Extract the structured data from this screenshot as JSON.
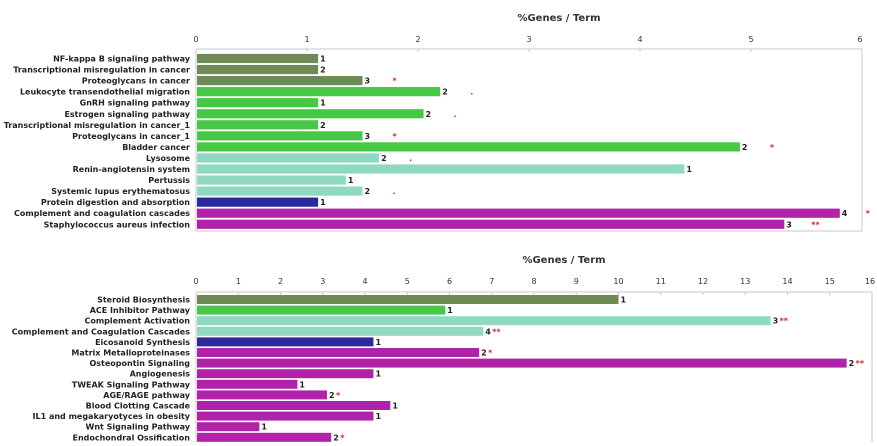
{
  "colors": {
    "dark_green": "#6e8b55",
    "green": "#46c846",
    "aqua": "#8fd9c2",
    "navy": "#2a2a9a",
    "magenta": "#b023a8",
    "star": "#e0201c"
  },
  "chart_data": [
    {
      "type": "bar",
      "orientation": "horizontal",
      "title": "%Genes / Term",
      "xlim": [
        0,
        6
      ],
      "xticks": [
        "0",
        "1",
        "2",
        "3",
        "4",
        "5",
        "6"
      ],
      "grid": false,
      "categories": [
        "NF-kappa B signaling pathway",
        "Transcriptional misregulation in cancer",
        "Proteoglycans in cancer",
        "Leukocyte transendothelial migration",
        "GnRH signaling pathway",
        "Estrogen signaling pathway",
        "Transcriptional misregulation in cancer_1",
        "Proteoglycans in cancer_1",
        "Bladder cancer",
        "Lysosome",
        "Renin-angiotensin system",
        "Pertussis",
        "Systemic lupus erythematosus",
        "Protein digestion and absorption",
        "Complement and coagulation cascades",
        "Staphylococcus aureus infection"
      ],
      "values": [
        1.1,
        1.1,
        1.5,
        2.2,
        1.1,
        2.05,
        1.1,
        1.5,
        4.9,
        1.65,
        4.4,
        1.35,
        1.5,
        1.1,
        5.8,
        5.3
      ],
      "counts": [
        "1",
        "2",
        "3",
        "2",
        "1",
        "2",
        "2",
        "3",
        "2",
        "2",
        "1",
        "1",
        "2",
        "1",
        "4",
        "3"
      ],
      "marks": [
        "",
        "",
        "*",
        ".",
        "",
        ".",
        "",
        "*",
        "*",
        ".",
        "",
        "",
        ".",
        "",
        "*",
        "**"
      ],
      "bar_colors": [
        "dark_green",
        "dark_green",
        "dark_green",
        "green",
        "green",
        "green",
        "green",
        "green",
        "green",
        "aqua",
        "aqua",
        "aqua",
        "aqua",
        "navy",
        "magenta",
        "magenta"
      ]
    },
    {
      "type": "bar",
      "orientation": "horizontal",
      "title": "%Genes / Term",
      "xlim": [
        0,
        16
      ],
      "xticks": [
        "0",
        "1",
        "2",
        "3",
        "4",
        "5",
        "6",
        "7",
        "8",
        "9",
        "10",
        "11",
        "12",
        "13",
        "14",
        "15",
        "16"
      ],
      "grid": false,
      "categories": [
        "Steroid Biosynthesis",
        "ACE Inhibitor Pathway",
        "Complement Activation",
        "Complement and Coagulation Cascades",
        "Eicosanoid Synthesis",
        "Matrix Metalloproteinases",
        "Osteopontin Signaling",
        "Angiogenesis",
        "TWEAK Signaling Pathway",
        "AGE/RAGE pathway",
        "Blood Clotting Cascade",
        "IL1 and megakaryotyces in obesity",
        "Wnt Signaling Pathway",
        "Endochondral Ossification"
      ],
      "values": [
        10.0,
        5.9,
        13.6,
        6.8,
        4.2,
        6.7,
        15.4,
        4.2,
        2.4,
        3.1,
        4.6,
        4.2,
        1.5,
        3.2
      ],
      "counts": [
        "1",
        "1",
        "3",
        "4",
        "1",
        "2",
        "2",
        "1",
        "1",
        "2",
        "1",
        "1",
        "1",
        "2"
      ],
      "marks": [
        "",
        "",
        "**",
        "**",
        "",
        "*",
        "**",
        "",
        "",
        "*",
        "",
        "",
        "",
        "*"
      ],
      "bar_colors": [
        "dark_green",
        "green",
        "aqua",
        "aqua",
        "navy",
        "magenta",
        "magenta",
        "magenta",
        "magenta",
        "magenta",
        "magenta",
        "magenta",
        "magenta",
        "magenta"
      ]
    }
  ]
}
